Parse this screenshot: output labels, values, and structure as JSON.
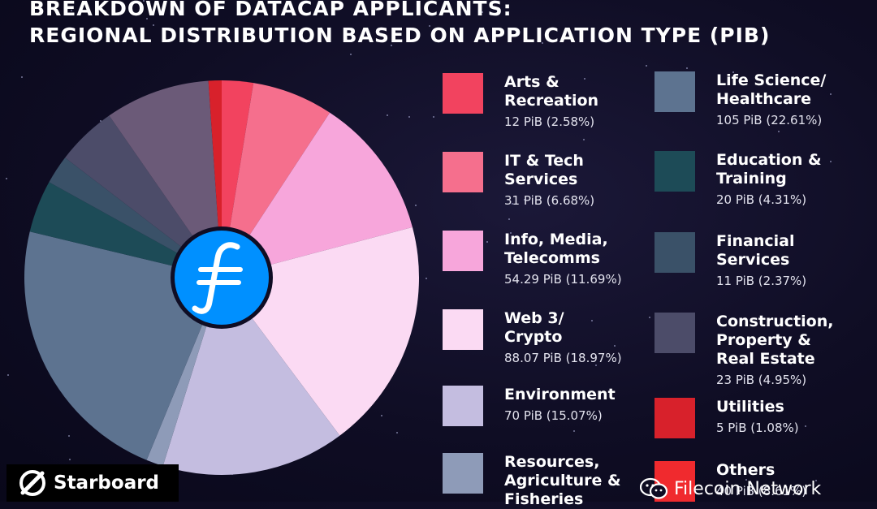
{
  "title_lines": [
    "BREAKDOWN OF DATACAP APPLICANTS:",
    "REGIONAL DISTRIBUTION BASED ON APPLICATION TYPE (PIB)"
  ],
  "chart_data": {
    "type": "pie",
    "title": "BREAKDOWN OF DATACAP APPLICANTS: REGIONAL DISTRIBUTION BASED ON APPLICATION TYPE (PIB)",
    "unit": "PiB",
    "categories": [
      {
        "label": "Arts & Recreation",
        "value": 12,
        "percent": 2.58,
        "value_text": "12 PiB (2.58%)",
        "color": "#f2435f"
      },
      {
        "label": "IT & Tech Services",
        "value": 31,
        "percent": 6.68,
        "value_text": "31 PiB (6.68%)",
        "color": "#f56f8d"
      },
      {
        "label": "Info, Media, Telecomms",
        "value": 54.29,
        "percent": 11.69,
        "value_text": "54.29 PiB (11.69%)",
        "color": "#f7a6db"
      },
      {
        "label": "Web 3/ Crypto",
        "value": 88.07,
        "percent": 18.97,
        "value_text": "88.07 PiB (18.97%)",
        "color": "#fbdaf3"
      },
      {
        "label": "Environment",
        "value": 70,
        "percent": 15.07,
        "value_text": "70 PiB (15.07%)",
        "color": "#c4bde0"
      },
      {
        "label": "Resources, Agriculture & Fisheries",
        "value": 6.5,
        "percent": 1.4,
        "value_text": "",
        "color": "#8e9bb8"
      },
      {
        "label": "Life Science/ Healthcare",
        "value": 105,
        "percent": 22.61,
        "value_text": "105 PiB (22.61%)",
        "color": "#5d7390"
      },
      {
        "label": "Education & Training",
        "value": 20,
        "percent": 4.31,
        "value_text": "20 PiB (4.31%)",
        "color": "#1d4b57"
      },
      {
        "label": "Financial Services",
        "value": 11,
        "percent": 2.37,
        "value_text": "11 PiB (2.37%)",
        "color": "#3a5168"
      },
      {
        "label": "Construction, Property & Real Estate",
        "value": 23,
        "percent": 4.95,
        "value_text": "23 PiB (4.95%)",
        "color": "#4c4c69"
      },
      {
        "label": "Others",
        "value": 40,
        "percent": 8.61,
        "value_text": "40 PiB (8.61%)",
        "color": "#6b5a78"
      },
      {
        "label": "Utilities",
        "value": 5,
        "percent": 1.08,
        "value_text": "5 PiB (1.08%)",
        "color": "#d8212b"
      }
    ],
    "center_logo": "filecoin-icon",
    "legend_placement": "right"
  },
  "legend": {
    "left": [
      {
        "label": "Arts &\nRecreation",
        "value_text": "12 PiB (2.58%)",
        "color": "#f2435f"
      },
      {
        "label": "IT & Tech\nServices",
        "value_text": "31 PiB (6.68%)",
        "color": "#f56f8d"
      },
      {
        "label": "Info, Media,\nTelecomms",
        "value_text": "54.29 PiB (11.69%)",
        "color": "#f7a6db"
      },
      {
        "label": "Web 3/\nCrypto",
        "value_text": "88.07 PiB (18.97%)",
        "color": "#fbdaf3"
      },
      {
        "label": "Environment",
        "value_text": "70 PiB (15.07%)",
        "color": "#c4bde0"
      },
      {
        "label": "Resources,\nAgriculture &\nFisheries",
        "value_text": "",
        "color": "#8e9bb8"
      }
    ],
    "right": [
      {
        "label": "Life Science/\nHealthcare",
        "value_text": "105 PiB (22.61%)",
        "color": "#5d7390"
      },
      {
        "label": "Education &\nTraining",
        "value_text": "20 PiB (4.31%)",
        "color": "#1d4b57"
      },
      {
        "label": "Financial\nServices",
        "value_text": "11 PiB (2.37%)",
        "color": "#3a5168"
      },
      {
        "label": "Construction,\nProperty &\nReal Estate",
        "value_text": "23 PiB (4.95%)",
        "color": "#4c4c69"
      },
      {
        "label": "Utilities",
        "value_text": "5 PiB (1.08%)",
        "color": "#d8212b"
      },
      {
        "label": "Others",
        "value_text": "40 PiB (8.61%)",
        "color": "#f02a2e"
      }
    ]
  },
  "brand": {
    "name": "Starboard",
    "icon": "starboard-logo-icon"
  },
  "watermark": {
    "text": "Filecoin Network",
    "icon": "wechat-icon"
  }
}
